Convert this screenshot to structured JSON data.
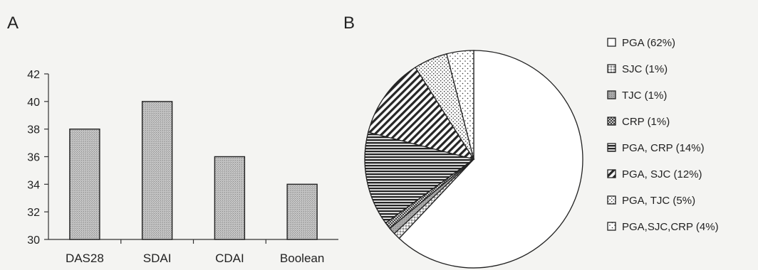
{
  "chart_data": [
    {
      "panel_label": "A",
      "type": "bar",
      "categories": [
        "DAS28",
        "SDAI",
        "CDAI",
        "Boolean"
      ],
      "values": [
        38,
        40,
        36,
        34
      ],
      "yticks": [
        30,
        32,
        34,
        36,
        38,
        40,
        42
      ],
      "ylim": [
        30,
        42
      ],
      "grid": false,
      "bar_fill": "#b7b7b7",
      "title": "",
      "xlabel": "",
      "ylabel": ""
    },
    {
      "panel_label": "B",
      "type": "pie",
      "legend_position": "right",
      "slices": [
        {
          "label": "PGA (62%)",
          "value": 62,
          "pattern": "blank",
          "color": "#ffffff"
        },
        {
          "label": "SJC (1%)",
          "value": 1,
          "pattern": "circle",
          "color": "#ffffff"
        },
        {
          "label": "TJC (1%)",
          "value": 1,
          "pattern": "gray",
          "color": "#a0a0a0"
        },
        {
          "label": "CRP (1%)",
          "value": 1,
          "pattern": "crosshatch",
          "color": "#666666"
        },
        {
          "label": "PGA, CRP (14%)",
          "value": 14,
          "pattern": "horizontal",
          "color": "#2a2a2a"
        },
        {
          "label": "PGA, SJC (12%)",
          "value": 12,
          "pattern": "diagonal",
          "color": "#2a2a2a"
        },
        {
          "label": "PGA, TJC  (5%)",
          "value": 5,
          "pattern": "dots",
          "color": "#555555"
        },
        {
          "label": "PGA,SJC,CRP (4%)",
          "value": 4,
          "pattern": "sparse-dots",
          "color": "#555555"
        }
      ]
    }
  ]
}
